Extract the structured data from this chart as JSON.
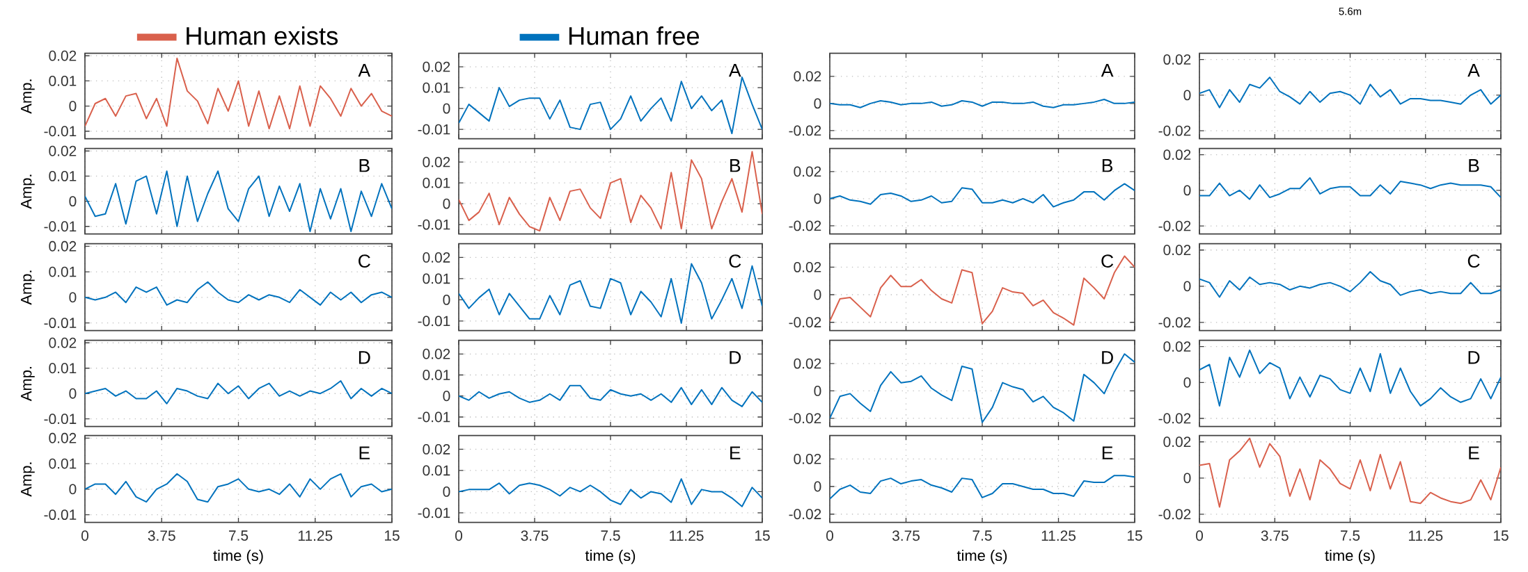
{
  "chart_data": [
    {
      "type": "line",
      "ylabel": "Amp.",
      "annotations": [
        "A"
      ],
      "legend": "top",
      "grid": true,
      "tick_labels": "y",
      "xlim": [
        0,
        15
      ],
      "ylim": [
        -0.013,
        0.021
      ],
      "xticks": [
        0,
        3.75,
        7.5,
        11.25,
        15
      ],
      "yticks": [
        -0.01,
        0,
        0.01,
        0.02
      ],
      "x": [
        0,
        0.5,
        1,
        1.5,
        2,
        2.5,
        3,
        3.5,
        4,
        4.5,
        5,
        5.5,
        6,
        6.5,
        7,
        7.5,
        8,
        8.5,
        9,
        9.5,
        10,
        10.5,
        11,
        11.5,
        12,
        12.5,
        13,
        13.5,
        14,
        14.5,
        15
      ],
      "series": [
        {
          "name": "Human exists",
          "color": "#d9604c",
          "values": [
            -0.008,
            0.001,
            0.003,
            -0.004,
            0.004,
            0.005,
            -0.005,
            0.003,
            -0.008,
            0.019,
            0.006,
            0.002,
            -0.007,
            0.007,
            -0.002,
            0.01,
            -0.008,
            0.006,
            -0.009,
            0.004,
            -0.009,
            0.008,
            -0.008,
            0.008,
            0.003,
            -0.004,
            0.007,
            0,
            0.005,
            -0.002,
            -0.004
          ]
        }
      ]
    },
    {
      "type": "line",
      "annotations": [
        "A"
      ],
      "legend": "top",
      "grid": true,
      "tick_labels": "y",
      "xlim": [
        0,
        15
      ],
      "ylim": [
        -0.0145,
        0.0265
      ],
      "xticks": [
        0,
        3.75,
        7.5,
        11.25,
        15
      ],
      "yticks": [
        -0.01,
        0,
        0.01,
        0.02
      ],
      "x": [
        0,
        0.5,
        1,
        1.5,
        2,
        2.5,
        3,
        3.5,
        4,
        4.5,
        5,
        5.5,
        6,
        6.5,
        7,
        7.5,
        8,
        8.5,
        9,
        9.5,
        10,
        10.5,
        11,
        11.5,
        12,
        12.5,
        13,
        13.5,
        14,
        14.5,
        15
      ],
      "series": [
        {
          "name": "Human free",
          "color": "#0072bd",
          "values": [
            -0.007,
            0.002,
            -0.002,
            -0.006,
            0.01,
            0.001,
            0.004,
            0.005,
            0.005,
            -0.005,
            0.004,
            -0.009,
            -0.01,
            0.002,
            0.003,
            -0.01,
            -0.005,
            0.006,
            -0.006,
            0,
            0.005,
            -0.006,
            0.013,
            0,
            0.006,
            -0.001,
            0.004,
            -0.012,
            0.015,
            0.002,
            -0.01
          ]
        }
      ]
    },
    {
      "type": "line",
      "annotations": [
        "A"
      ],
      "grid": true,
      "tick_labels": "y",
      "xlim": [
        0,
        15
      ],
      "ylim": [
        -0.026,
        0.037
      ],
      "xticks": [
        0,
        3.75,
        7.5,
        11.25,
        15
      ],
      "yticks": [
        -0.02,
        0,
        0.02
      ],
      "x": [
        0,
        0.5,
        1,
        1.5,
        2,
        2.5,
        3,
        3.5,
        4,
        4.5,
        5,
        5.5,
        6,
        6.5,
        7,
        7.5,
        8,
        8.5,
        9,
        9.5,
        10,
        10.5,
        11,
        11.5,
        12,
        12.5,
        13,
        13.5,
        14,
        14.5,
        15
      ],
      "series": [
        {
          "color": "#0072bd",
          "values": [
            0,
            -0.001,
            -0.001,
            -0.003,
            0,
            0.002,
            0.001,
            -0.001,
            0,
            0,
            0.001,
            -0.002,
            -0.001,
            0.002,
            0.001,
            -0.002,
            0.001,
            0.001,
            0,
            0,
            0.001,
            -0.002,
            -0.003,
            -0.001,
            -0.001,
            0,
            0.001,
            0.003,
            0,
            0,
            0.001
          ]
        }
      ]
    },
    {
      "type": "line",
      "title": "5.6m",
      "annotations": [
        "A"
      ],
      "grid": true,
      "tick_labels": "y",
      "xlim": [
        0,
        15
      ],
      "ylim": [
        -0.0245,
        0.0235
      ],
      "xticks": [
        0,
        3.75,
        7.5,
        11.25,
        15
      ],
      "yticks": [
        -0.02,
        0,
        0.02
      ],
      "x": [
        0,
        0.5,
        1,
        1.5,
        2,
        2.5,
        3,
        3.5,
        4,
        4.5,
        5,
        5.5,
        6,
        6.5,
        7,
        7.5,
        8,
        8.5,
        9,
        9.5,
        10,
        10.5,
        11,
        11.5,
        12,
        12.5,
        13,
        13.5,
        14,
        14.5,
        15
      ],
      "series": [
        {
          "color": "#0072bd",
          "values": [
            0.001,
            0.003,
            -0.007,
            0.003,
            -0.004,
            0.006,
            0.004,
            0.01,
            0.002,
            -0.001,
            -0.005,
            0.002,
            -0.004,
            0.001,
            0.002,
            0,
            -0.005,
            0.006,
            -0.001,
            0.003,
            -0.005,
            -0.002,
            -0.002,
            -0.003,
            -0.003,
            -0.004,
            -0.005,
            0,
            0.003,
            -0.005,
            0
          ]
        }
      ]
    },
    {
      "type": "line",
      "ylabel": "Amp.",
      "annotations": [
        "B"
      ],
      "grid": true,
      "tick_labels": "y",
      "xlim": [
        0,
        15
      ],
      "ylim": [
        -0.013,
        0.021
      ],
      "xticks": [
        0,
        3.75,
        7.5,
        11.25,
        15
      ],
      "yticks": [
        -0.01,
        0,
        0.01,
        0.02
      ],
      "x": [
        0,
        0.5,
        1,
        1.5,
        2,
        2.5,
        3,
        3.5,
        4,
        4.5,
        5,
        5.5,
        6,
        6.5,
        7,
        7.5,
        8,
        8.5,
        9,
        9.5,
        10,
        10.5,
        11,
        11.5,
        12,
        12.5,
        13,
        13.5,
        14,
        14.5,
        15
      ],
      "series": [
        {
          "color": "#0072bd",
          "values": [
            0.002,
            -0.006,
            -0.005,
            0.007,
            -0.009,
            0.008,
            0.01,
            -0.005,
            0.012,
            -0.01,
            0.01,
            -0.008,
            0.003,
            0.012,
            -0.003,
            -0.008,
            0.005,
            0.01,
            -0.006,
            0.006,
            -0.004,
            0.007,
            -0.012,
            0.005,
            -0.007,
            0.005,
            -0.012,
            0.004,
            -0.006,
            0.007,
            -0.003
          ]
        }
      ]
    },
    {
      "type": "line",
      "annotations": [
        "B"
      ],
      "grid": true,
      "tick_labels": "y",
      "xlim": [
        0,
        15
      ],
      "ylim": [
        -0.0145,
        0.0265
      ],
      "xticks": [
        0,
        3.75,
        7.5,
        11.25,
        15
      ],
      "yticks": [
        -0.01,
        0,
        0.01,
        0.02
      ],
      "x": [
        0,
        0.5,
        1,
        1.5,
        2,
        2.5,
        3,
        3.5,
        4,
        4.5,
        5,
        5.5,
        6,
        6.5,
        7,
        7.5,
        8,
        8.5,
        9,
        9.5,
        10,
        10.5,
        11,
        11.5,
        12,
        12.5,
        13,
        13.5,
        14,
        14.5,
        15
      ],
      "series": [
        {
          "color": "#d9604c",
          "values": [
            0.002,
            -0.008,
            -0.004,
            0.005,
            -0.01,
            0.003,
            -0.005,
            -0.011,
            -0.013,
            0.003,
            -0.008,
            0.006,
            0.007,
            -0.002,
            -0.007,
            0.01,
            0.012,
            -0.009,
            0.004,
            -0.002,
            -0.012,
            0.015,
            -0.012,
            0.021,
            0.012,
            -0.012,
            0.001,
            0.012,
            -0.004,
            0.025,
            -0.005
          ]
        }
      ]
    },
    {
      "type": "line",
      "annotations": [
        "B"
      ],
      "grid": true,
      "tick_labels": "y",
      "xlim": [
        0,
        15
      ],
      "ylim": [
        -0.026,
        0.037
      ],
      "xticks": [
        0,
        3.75,
        7.5,
        11.25,
        15
      ],
      "yticks": [
        -0.02,
        0,
        0.02
      ],
      "x": [
        0,
        0.5,
        1,
        1.5,
        2,
        2.5,
        3,
        3.5,
        4,
        4.5,
        5,
        5.5,
        6,
        6.5,
        7,
        7.5,
        8,
        8.5,
        9,
        9.5,
        10,
        10.5,
        11,
        11.5,
        12,
        12.5,
        13,
        13.5,
        14,
        14.5,
        15
      ],
      "series": [
        {
          "color": "#0072bd",
          "values": [
            0,
            0.002,
            -0.001,
            -0.002,
            -0.004,
            0.003,
            0.004,
            0.002,
            -0.002,
            -0.001,
            0.002,
            -0.003,
            -0.002,
            0.008,
            0.007,
            -0.003,
            -0.003,
            -0.001,
            -0.003,
            0,
            -0.003,
            0.003,
            -0.006,
            -0.003,
            -0.001,
            0.005,
            0.005,
            -0.001,
            0.006,
            0.011,
            0.006
          ]
        }
      ]
    },
    {
      "type": "line",
      "annotations": [
        "B"
      ],
      "grid": true,
      "tick_labels": "y",
      "xlim": [
        0,
        15
      ],
      "ylim": [
        -0.0245,
        0.0235
      ],
      "xticks": [
        0,
        3.75,
        7.5,
        11.25,
        15
      ],
      "yticks": [
        -0.02,
        0,
        0.02
      ],
      "x": [
        0,
        0.5,
        1,
        1.5,
        2,
        2.5,
        3,
        3.5,
        4,
        4.5,
        5,
        5.5,
        6,
        6.5,
        7,
        7.5,
        8,
        8.5,
        9,
        9.5,
        10,
        10.5,
        11,
        11.5,
        12,
        12.5,
        13,
        13.5,
        14,
        14.5,
        15
      ],
      "series": [
        {
          "color": "#0072bd",
          "values": [
            -0.003,
            -0.003,
            0.004,
            -0.003,
            0,
            -0.005,
            0.003,
            -0.004,
            -0.002,
            0.001,
            0.001,
            0.007,
            -0.002,
            0.001,
            0.002,
            0.002,
            -0.003,
            -0.003,
            0.003,
            -0.002,
            0.005,
            0.004,
            0.003,
            0.001,
            0.003,
            0.004,
            0.003,
            0.003,
            0.003,
            0.002,
            -0.004
          ]
        }
      ]
    },
    {
      "type": "line",
      "ylabel": "Amp.",
      "annotations": [
        "C"
      ],
      "grid": true,
      "tick_labels": "y",
      "xlim": [
        0,
        15
      ],
      "ylim": [
        -0.013,
        0.021
      ],
      "xticks": [
        0,
        3.75,
        7.5,
        11.25,
        15
      ],
      "yticks": [
        -0.01,
        0,
        0.01,
        0.02
      ],
      "x": [
        0,
        0.5,
        1,
        1.5,
        2,
        2.5,
        3,
        3.5,
        4,
        4.5,
        5,
        5.5,
        6,
        6.5,
        7,
        7.5,
        8,
        8.5,
        9,
        9.5,
        10,
        10.5,
        11,
        11.5,
        12,
        12.5,
        13,
        13.5,
        14,
        14.5,
        15
      ],
      "series": [
        {
          "color": "#0072bd",
          "values": [
            0,
            -0.001,
            0,
            0.002,
            -0.002,
            0.004,
            0.002,
            0.004,
            -0.003,
            -0.001,
            -0.002,
            0.003,
            0.006,
            0.002,
            -0.001,
            -0.002,
            0.001,
            -0.001,
            0.001,
            0,
            -0.002,
            0.003,
            0,
            -0.003,
            0.002,
            -0.001,
            0.002,
            -0.002,
            0.001,
            0.002,
            0
          ]
        }
      ]
    },
    {
      "type": "line",
      "annotations": [
        "C"
      ],
      "grid": true,
      "tick_labels": "y",
      "xlim": [
        0,
        15
      ],
      "ylim": [
        -0.0145,
        0.0265
      ],
      "xticks": [
        0,
        3.75,
        7.5,
        11.25,
        15
      ],
      "yticks": [
        -0.01,
        0,
        0.01,
        0.02
      ],
      "x": [
        0,
        0.5,
        1,
        1.5,
        2,
        2.5,
        3,
        3.5,
        4,
        4.5,
        5,
        5.5,
        6,
        6.5,
        7,
        7.5,
        8,
        8.5,
        9,
        9.5,
        10,
        10.5,
        11,
        11.5,
        12,
        12.5,
        13,
        13.5,
        14,
        14.5,
        15
      ],
      "series": [
        {
          "color": "#0072bd",
          "values": [
            0.003,
            -0.004,
            0.001,
            0.005,
            -0.007,
            0.003,
            -0.003,
            -0.009,
            -0.009,
            0.002,
            -0.007,
            0.007,
            0.009,
            -0.003,
            -0.004,
            0.01,
            0.008,
            -0.007,
            0.004,
            -0.001,
            -0.008,
            0.01,
            -0.011,
            0.017,
            0.008,
            -0.009,
            0,
            0.01,
            -0.004,
            0.016,
            -0.003
          ]
        }
      ]
    },
    {
      "type": "line",
      "annotations": [
        "C"
      ],
      "grid": true,
      "tick_labels": "y",
      "xlim": [
        0,
        15
      ],
      "ylim": [
        -0.026,
        0.037
      ],
      "xticks": [
        0,
        3.75,
        7.5,
        11.25,
        15
      ],
      "yticks": [
        -0.02,
        0,
        0.02
      ],
      "x": [
        0,
        0.5,
        1,
        1.5,
        2,
        2.5,
        3,
        3.5,
        4,
        4.5,
        5,
        5.5,
        6,
        6.5,
        7,
        7.5,
        8,
        8.5,
        9,
        9.5,
        10,
        10.5,
        11,
        11.5,
        12,
        12.5,
        13,
        13.5,
        14,
        14.5,
        15
      ],
      "series": [
        {
          "color": "#d9604c",
          "values": [
            -0.019,
            -0.003,
            -0.002,
            -0.009,
            -0.016,
            0.005,
            0.014,
            0.006,
            0.006,
            0.011,
            0.003,
            -0.003,
            -0.006,
            0.018,
            0.016,
            -0.021,
            -0.012,
            0.005,
            0.002,
            0.001,
            -0.008,
            -0.004,
            -0.013,
            -0.017,
            -0.022,
            0.012,
            0.005,
            -0.003,
            0.016,
            0.028,
            0.02
          ]
        }
      ]
    },
    {
      "type": "line",
      "annotations": [
        "C"
      ],
      "grid": true,
      "tick_labels": "y",
      "xlim": [
        0,
        15
      ],
      "ylim": [
        -0.0245,
        0.0235
      ],
      "xticks": [
        0,
        3.75,
        7.5,
        11.25,
        15
      ],
      "yticks": [
        -0.02,
        0,
        0.02
      ],
      "x": [
        0,
        0.5,
        1,
        1.5,
        2,
        2.5,
        3,
        3.5,
        4,
        4.5,
        5,
        5.5,
        6,
        6.5,
        7,
        7.5,
        8,
        8.5,
        9,
        9.5,
        10,
        10.5,
        11,
        11.5,
        12,
        12.5,
        13,
        13.5,
        14,
        14.5,
        15
      ],
      "series": [
        {
          "color": "#0072bd",
          "values": [
            0.004,
            0.002,
            -0.006,
            0.003,
            -0.002,
            0.005,
            0.001,
            0.002,
            0.001,
            -0.002,
            0,
            -0.001,
            0.001,
            0.002,
            0,
            -0.003,
            0.002,
            0.008,
            0.003,
            0.001,
            -0.005,
            -0.003,
            -0.002,
            -0.004,
            -0.003,
            -0.004,
            -0.004,
            0.002,
            -0.004,
            -0.004,
            -0.002
          ]
        }
      ]
    },
    {
      "type": "line",
      "ylabel": "Amp.",
      "annotations": [
        "D"
      ],
      "grid": true,
      "tick_labels": "y",
      "xlim": [
        0,
        15
      ],
      "ylim": [
        -0.013,
        0.021
      ],
      "xticks": [
        0,
        3.75,
        7.5,
        11.25,
        15
      ],
      "yticks": [
        -0.01,
        0,
        0.01,
        0.02
      ],
      "x": [
        0,
        0.5,
        1,
        1.5,
        2,
        2.5,
        3,
        3.5,
        4,
        4.5,
        5,
        5.5,
        6,
        6.5,
        7,
        7.5,
        8,
        8.5,
        9,
        9.5,
        10,
        10.5,
        11,
        11.5,
        12,
        12.5,
        13,
        13.5,
        14,
        14.5,
        15
      ],
      "series": [
        {
          "color": "#0072bd",
          "values": [
            0,
            0.001,
            0.002,
            -0.001,
            0.001,
            -0.002,
            -0.002,
            0.001,
            -0.004,
            0.002,
            0.001,
            -0.001,
            -0.002,
            0.004,
            0,
            0.003,
            -0.002,
            0.002,
            0.004,
            -0.001,
            0.001,
            -0.001,
            0.001,
            0,
            0.002,
            0.005,
            -0.002,
            0.002,
            -0.001,
            0.002,
            0
          ]
        }
      ]
    },
    {
      "type": "line",
      "annotations": [
        "D"
      ],
      "grid": true,
      "tick_labels": "y",
      "xlim": [
        0,
        15
      ],
      "ylim": [
        -0.0145,
        0.0265
      ],
      "xticks": [
        0,
        3.75,
        7.5,
        11.25,
        15
      ],
      "yticks": [
        -0.01,
        0,
        0.01,
        0.02
      ],
      "x": [
        0,
        0.5,
        1,
        1.5,
        2,
        2.5,
        3,
        3.5,
        4,
        4.5,
        5,
        5.5,
        6,
        6.5,
        7,
        7.5,
        8,
        8.5,
        9,
        9.5,
        10,
        10.5,
        11,
        11.5,
        12,
        12.5,
        13,
        13.5,
        14,
        14.5,
        15
      ],
      "series": [
        {
          "color": "#0072bd",
          "values": [
            0,
            -0.002,
            0.002,
            -0.001,
            0.001,
            0.002,
            -0.001,
            -0.003,
            -0.002,
            0.001,
            -0.002,
            0.005,
            0.005,
            -0.001,
            -0.002,
            0.003,
            0.001,
            0,
            0.001,
            -0.002,
            0.001,
            -0.003,
            0.004,
            -0.004,
            0.003,
            -0.004,
            0.004,
            -0.002,
            -0.005,
            0.002,
            -0.003
          ]
        }
      ]
    },
    {
      "type": "line",
      "annotations": [
        "D"
      ],
      "grid": true,
      "tick_labels": "y",
      "xlim": [
        0,
        15
      ],
      "ylim": [
        -0.026,
        0.037
      ],
      "xticks": [
        0,
        3.75,
        7.5,
        11.25,
        15
      ],
      "yticks": [
        -0.02,
        0,
        0.02
      ],
      "x": [
        0,
        0.5,
        1,
        1.5,
        2,
        2.5,
        3,
        3.5,
        4,
        4.5,
        5,
        5.5,
        6,
        6.5,
        7,
        7.5,
        8,
        8.5,
        9,
        9.5,
        10,
        10.5,
        11,
        11.5,
        12,
        12.5,
        13,
        13.5,
        14,
        14.5,
        15
      ],
      "series": [
        {
          "color": "#0072bd",
          "values": [
            -0.02,
            -0.004,
            -0.002,
            -0.009,
            -0.015,
            0.004,
            0.014,
            0.006,
            0.007,
            0.011,
            0.002,
            -0.003,
            -0.007,
            0.018,
            0.016,
            -0.023,
            -0.012,
            0.006,
            0.003,
            0.001,
            -0.008,
            -0.004,
            -0.012,
            -0.016,
            -0.022,
            0.012,
            0.006,
            -0.002,
            0.014,
            0.027,
            0.021
          ]
        }
      ]
    },
    {
      "type": "line",
      "annotations": [
        "D"
      ],
      "grid": true,
      "tick_labels": "y",
      "xlim": [
        0,
        15
      ],
      "ylim": [
        -0.0245,
        0.0235
      ],
      "xticks": [
        0,
        3.75,
        7.5,
        11.25,
        15
      ],
      "yticks": [
        -0.02,
        0,
        0.02
      ],
      "x": [
        0,
        0.5,
        1,
        1.5,
        2,
        2.5,
        3,
        3.5,
        4,
        4.5,
        5,
        5.5,
        6,
        6.5,
        7,
        7.5,
        8,
        8.5,
        9,
        9.5,
        10,
        10.5,
        11,
        11.5,
        12,
        12.5,
        13,
        13.5,
        14,
        14.5,
        15
      ],
      "series": [
        {
          "color": "#0072bd",
          "values": [
            0.007,
            0.01,
            -0.013,
            0.014,
            0.003,
            0.018,
            0.005,
            0.011,
            0.008,
            -0.009,
            0.003,
            -0.008,
            0.004,
            0.002,
            -0.004,
            -0.006,
            0.008,
            -0.005,
            0.016,
            -0.006,
            0.008,
            -0.005,
            -0.013,
            -0.009,
            -0.003,
            -0.008,
            -0.011,
            -0.009,
            0.002,
            -0.009,
            0.003
          ]
        }
      ]
    },
    {
      "type": "line",
      "ylabel": "Amp.",
      "xlabel": "time (s)",
      "annotations": [
        "E"
      ],
      "grid": true,
      "xlim": [
        0,
        15
      ],
      "ylim": [
        -0.013,
        0.021
      ],
      "xticks": [
        0,
        3.75,
        7.5,
        11.25,
        15
      ],
      "yticks": [
        -0.01,
        0,
        0.01,
        0.02
      ],
      "x": [
        0,
        0.5,
        1,
        1.5,
        2,
        2.5,
        3,
        3.5,
        4,
        4.5,
        5,
        5.5,
        6,
        6.5,
        7,
        7.5,
        8,
        8.5,
        9,
        9.5,
        10,
        10.5,
        11,
        11.5,
        12,
        12.5,
        13,
        13.5,
        14,
        14.5,
        15
      ],
      "series": [
        {
          "color": "#0072bd",
          "values": [
            0,
            0.002,
            0.002,
            -0.002,
            0.003,
            -0.003,
            -0.005,
            0,
            0.002,
            0.006,
            0.003,
            -0.004,
            -0.005,
            0.001,
            0.002,
            0.004,
            0,
            -0.001,
            0,
            -0.002,
            0.002,
            -0.003,
            0.004,
            0,
            0.004,
            0.006,
            -0.003,
            0.001,
            0.002,
            -0.001,
            0
          ]
        }
      ]
    },
    {
      "type": "line",
      "xlabel": "time (s)",
      "annotations": [
        "E"
      ],
      "grid": true,
      "xlim": [
        0,
        15
      ],
      "ylim": [
        -0.0145,
        0.0265
      ],
      "xticks": [
        0,
        3.75,
        7.5,
        11.25,
        15
      ],
      "yticks": [
        -0.01,
        0,
        0.01,
        0.02
      ],
      "x": [
        0,
        0.5,
        1,
        1.5,
        2,
        2.5,
        3,
        3.5,
        4,
        4.5,
        5,
        5.5,
        6,
        6.5,
        7,
        7.5,
        8,
        8.5,
        9,
        9.5,
        10,
        10.5,
        11,
        11.5,
        12,
        12.5,
        13,
        13.5,
        14,
        14.5,
        15
      ],
      "series": [
        {
          "color": "#0072bd",
          "values": [
            0,
            0.001,
            0.001,
            0.001,
            0.004,
            -0.001,
            0.003,
            0.004,
            0.003,
            0.001,
            -0.002,
            0.002,
            0,
            0.003,
            0,
            -0.004,
            -0.006,
            0.001,
            -0.003,
            0,
            -0.001,
            -0.005,
            0.006,
            -0.006,
            0.001,
            0,
            0,
            -0.003,
            -0.007,
            0.002,
            -0.003
          ]
        }
      ]
    },
    {
      "type": "line",
      "xlabel": "time (s)",
      "annotations": [
        "E"
      ],
      "grid": true,
      "xlim": [
        0,
        15
      ],
      "ylim": [
        -0.026,
        0.037
      ],
      "xticks": [
        0,
        3.75,
        7.5,
        11.25,
        15
      ],
      "yticks": [
        -0.02,
        0,
        0.02
      ],
      "x": [
        0,
        0.5,
        1,
        1.5,
        2,
        2.5,
        3,
        3.5,
        4,
        4.5,
        5,
        5.5,
        6,
        6.5,
        7,
        7.5,
        8,
        8.5,
        9,
        9.5,
        10,
        10.5,
        11,
        11.5,
        12,
        12.5,
        13,
        13.5,
        14,
        14.5,
        15
      ],
      "series": [
        {
          "color": "#0072bd",
          "values": [
            -0.009,
            -0.002,
            0.001,
            -0.004,
            -0.005,
            0.004,
            0.006,
            0.002,
            0.004,
            0.005,
            0.001,
            -0.001,
            -0.004,
            0.006,
            0.005,
            -0.008,
            -0.005,
            0.002,
            0.002,
            0,
            -0.002,
            -0.002,
            -0.005,
            -0.005,
            -0.007,
            0.004,
            0.003,
            0.003,
            0.008,
            0.008,
            0.007
          ]
        }
      ]
    },
    {
      "type": "line",
      "xlabel": "time (s)",
      "annotations": [
        "E"
      ],
      "grid": true,
      "xlim": [
        0,
        15
      ],
      "ylim": [
        -0.0245,
        0.0235
      ],
      "xticks": [
        0,
        3.75,
        7.5,
        11.25,
        15
      ],
      "yticks": [
        -0.02,
        0,
        0.02
      ],
      "x": [
        0,
        0.5,
        1,
        1.5,
        2,
        2.5,
        3,
        3.5,
        4,
        4.5,
        5,
        5.5,
        6,
        6.5,
        7,
        7.5,
        8,
        8.5,
        9,
        9.5,
        10,
        10.5,
        11,
        11.5,
        12,
        12.5,
        13,
        13.5,
        14,
        14.5,
        15
      ],
      "series": [
        {
          "color": "#d9604c",
          "values": [
            0.007,
            0.008,
            -0.016,
            0.01,
            0.015,
            0.022,
            0.006,
            0.019,
            0.012,
            -0.01,
            0.005,
            -0.012,
            0.01,
            0.005,
            -0.003,
            -0.006,
            0.01,
            -0.007,
            0.013,
            -0.006,
            0.009,
            -0.013,
            -0.014,
            -0.008,
            -0.011,
            -0.013,
            -0.014,
            -0.012,
            -0.001,
            -0.012,
            0.006
          ]
        }
      ]
    }
  ]
}
